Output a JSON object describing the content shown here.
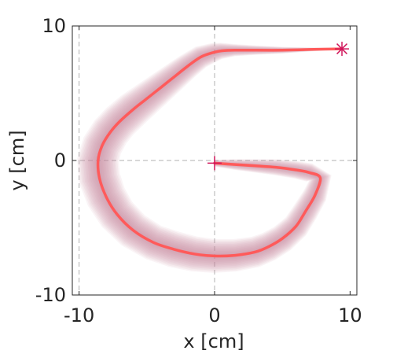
{
  "chart_data": {
    "type": "line",
    "xlabel": "x [cm]",
    "ylabel": "y [cm]",
    "xlim": [
      -10.5,
      10.5
    ],
    "ylim": [
      -10,
      10
    ],
    "xticks": [
      -10,
      0,
      10
    ],
    "yticks": [
      -10,
      0,
      10
    ],
    "xtick_labels": [
      "-10",
      "0",
      "10"
    ],
    "ytick_labels": [
      "-10",
      "0",
      "10"
    ],
    "grid": "dashed lines at x=-10, x=0 and y=0",
    "series": [
      {
        "role": "mean trajectory",
        "color": "#ff5a5a",
        "x": [
          0.0,
          1.5,
          3.0,
          4.5,
          6.0,
          7.0,
          7.8,
          7.4,
          6.7,
          6.0,
          5.0,
          4.0,
          3.0,
          1.5,
          0.0,
          -1.5,
          -3.0,
          -4.5,
          -6.0,
          -7.2,
          -8.0,
          -8.5,
          -8.6,
          -8.3,
          -7.7,
          -7.0,
          -6.0,
          -5.0,
          -4.0,
          -3.0,
          -2.0,
          -1.0,
          0.0,
          0.5,
          1.5,
          3.0,
          5.0,
          7.0,
          9.4
        ],
        "y": [
          -0.2,
          -0.3,
          -0.4,
          -0.5,
          -0.7,
          -0.9,
          -1.3,
          -2.6,
          -3.8,
          -4.9,
          -5.8,
          -6.4,
          -6.8,
          -7.05,
          -7.1,
          -6.95,
          -6.6,
          -6.1,
          -5.2,
          -4.0,
          -2.7,
          -1.3,
          0.0,
          1.1,
          2.1,
          2.9,
          3.8,
          4.6,
          5.4,
          6.2,
          7.0,
          7.7,
          8.05,
          8.15,
          8.2,
          8.2,
          8.2,
          8.25,
          8.3
        ]
      }
    ],
    "uncertainty_band": {
      "color": "#c8829a",
      "half_width": [
        0.25,
        0.4,
        0.5,
        0.6,
        0.65,
        0.7,
        0.85,
        0.9,
        0.95,
        1.0,
        1.05,
        1.1,
        1.15,
        1.2,
        1.25,
        1.3,
        1.35,
        1.35,
        1.4,
        1.45,
        1.5,
        1.55,
        1.55,
        1.5,
        1.45,
        1.4,
        1.35,
        1.25,
        1.15,
        1.05,
        0.95,
        0.85,
        0.7,
        0.6,
        0.45,
        0.35,
        0.25,
        0.15,
        0.05
      ]
    },
    "markers": [
      {
        "name": "start",
        "symbol": "plus",
        "x": 0.0,
        "y": -0.2,
        "color": "#d0155a"
      },
      {
        "name": "end",
        "symbol": "asterisk",
        "x": 9.4,
        "y": 8.3,
        "color": "#d0155a"
      }
    ]
  }
}
